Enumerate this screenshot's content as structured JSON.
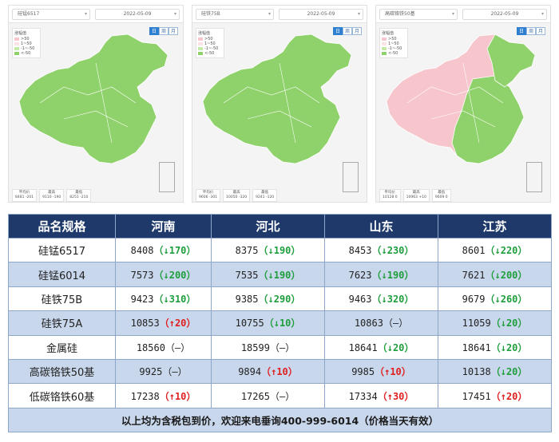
{
  "colors": {
    "header_bg": "#1f3a6a",
    "row_alt": "#c9d7ec",
    "up": "#e02020",
    "down": "#1e9e3c",
    "map_green": "#8fd16a",
    "map_pink": "#f6c6cc"
  },
  "maps": [
    {
      "spec": "硅锰6517",
      "date": "2022-05-09",
      "toggle": [
        "日",
        "周",
        "月"
      ],
      "legend_title": "涨幅值",
      "legend": [
        ">50",
        "1~50",
        "-1~-50",
        "<-50"
      ],
      "stats": [
        [
          "平均价",
          "8481 -201"
        ],
        [
          "最高",
          "9110 -190"
        ],
        [
          "最低",
          "8251 -210"
        ]
      ],
      "fill": "green"
    },
    {
      "spec": "硅铁75B",
      "date": "2022-05-09",
      "toggle": [
        "日",
        "周",
        "月"
      ],
      "legend_title": "涨幅值",
      "legend": [
        ">50",
        "1~50",
        "-1~-50",
        "<-50"
      ],
      "stats": [
        [
          "平均价",
          "9606 -301"
        ],
        [
          "最高",
          "10050 -320"
        ],
        [
          "最低",
          "9241 -120"
        ]
      ],
      "fill": "green"
    },
    {
      "spec": "高碳铬铁50基",
      "date": "2022-05-09",
      "toggle": [
        "日",
        "周",
        "月"
      ],
      "legend_title": "涨幅值",
      "legend": [
        ">50",
        "1~50",
        "-1~-50",
        "<-50"
      ],
      "stats": [
        [
          "平均价",
          "10128 0"
        ],
        [
          "最高",
          "10963 +10"
        ],
        [
          "最低",
          "9609 0"
        ]
      ],
      "fill": "mixed"
    }
  ],
  "table": {
    "headers": [
      "品名规格",
      "河南",
      "河北",
      "山东",
      "江苏"
    ],
    "rows": [
      {
        "name": "硅锰6517",
        "cells": [
          {
            "price": "8408",
            "dir": "down",
            "chg": "170"
          },
          {
            "price": "8375",
            "dir": "down",
            "chg": "190"
          },
          {
            "price": "8453",
            "dir": "down",
            "chg": "230"
          },
          {
            "price": "8601",
            "dir": "down",
            "chg": "220"
          }
        ]
      },
      {
        "name": "硅锰6014",
        "cells": [
          {
            "price": "7573",
            "dir": "down",
            "chg": "200"
          },
          {
            "price": "7535",
            "dir": "down",
            "chg": "190"
          },
          {
            "price": "7623",
            "dir": "down",
            "chg": "190"
          },
          {
            "price": "7621",
            "dir": "down",
            "chg": "200"
          }
        ]
      },
      {
        "name": "硅铁75B",
        "cells": [
          {
            "price": "9423",
            "dir": "down",
            "chg": "310"
          },
          {
            "price": "9385",
            "dir": "down",
            "chg": "290"
          },
          {
            "price": "9463",
            "dir": "down",
            "chg": "320"
          },
          {
            "price": "9679",
            "dir": "down",
            "chg": "260"
          }
        ]
      },
      {
        "name": "硅铁75A",
        "cells": [
          {
            "price": "10853",
            "dir": "up",
            "chg": "20"
          },
          {
            "price": "10755",
            "dir": "down",
            "chg": "10"
          },
          {
            "price": "10863",
            "dir": "flat",
            "chg": "—"
          },
          {
            "price": "11059",
            "dir": "down",
            "chg": "20"
          }
        ]
      },
      {
        "name": "金属硅",
        "cells": [
          {
            "price": "18560",
            "dir": "flat",
            "chg": "—"
          },
          {
            "price": "18599",
            "dir": "flat",
            "chg": "—"
          },
          {
            "price": "18641",
            "dir": "down",
            "chg": "20"
          },
          {
            "price": "18641",
            "dir": "down",
            "chg": "20"
          }
        ]
      },
      {
        "name": "高碳铬铁50基",
        "cells": [
          {
            "price": "9925",
            "dir": "flat",
            "chg": "—"
          },
          {
            "price": "9894",
            "dir": "up",
            "chg": "10"
          },
          {
            "price": "9985",
            "dir": "up",
            "chg": "10"
          },
          {
            "price": "10138",
            "dir": "down",
            "chg": "20"
          }
        ]
      },
      {
        "name": "低碳铬铁60基",
        "cells": [
          {
            "price": "17238",
            "dir": "up",
            "chg": "10"
          },
          {
            "price": "17265",
            "dir": "flat",
            "chg": "—"
          },
          {
            "price": "17334",
            "dir": "up",
            "chg": "30"
          },
          {
            "price": "17451",
            "dir": "up",
            "chg": "20"
          }
        ]
      }
    ],
    "footer": "以上均为含税包到价，欢迎来电垂询400-999-6014（价格当天有效）"
  }
}
